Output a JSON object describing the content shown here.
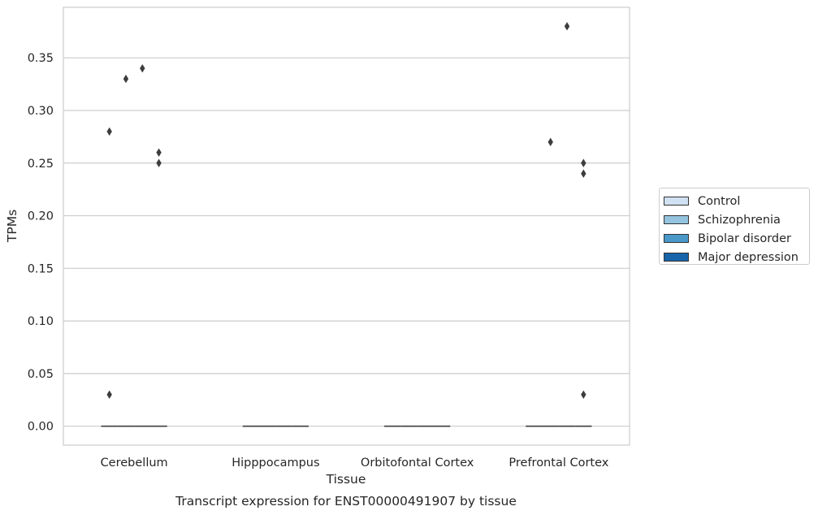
{
  "chart_data": {
    "type": "box",
    "title": "Transcript expression for ENST00000491907 by tissue",
    "xlabel": "Tissue",
    "ylabel": "TPMs",
    "categories": [
      "Cerebellum",
      "Hipppocampus",
      "Orbitofontal Cortex",
      "Prefrontal Cortex"
    ],
    "ylim": [
      -0.018,
      0.398
    ],
    "yticks": [
      0.0,
      0.05,
      0.1,
      0.15,
      0.2,
      0.25,
      0.3,
      0.35
    ],
    "ytick_labels": [
      "0.00",
      "0.05",
      "0.10",
      "0.15",
      "0.20",
      "0.25",
      "0.30",
      "0.35"
    ],
    "grid": "horizontal",
    "legend_position": "right",
    "series": [
      {
        "name": "Control",
        "color": "#d0e1f2",
        "median": [
          0,
          0,
          0,
          0
        ],
        "outliers": [
          [
            0.28,
            0.03
          ],
          [],
          [],
          []
        ]
      },
      {
        "name": "Schizophrenia",
        "color": "#94c4df",
        "median": [
          0,
          0,
          0,
          0
        ],
        "outliers": [
          [
            0.33
          ],
          [],
          [],
          [
            0.27
          ]
        ]
      },
      {
        "name": "Bipolar disorder",
        "color": "#4a98c9",
        "median": [
          0,
          0,
          0,
          0
        ],
        "outliers": [
          [
            0.34
          ],
          [],
          [],
          [
            0.38
          ]
        ]
      },
      {
        "name": "Major depression",
        "color": "#1764ab",
        "median": [
          0,
          0,
          0,
          0
        ],
        "outliers": [
          [
            0.26,
            0.25
          ],
          [],
          [],
          [
            0.25,
            0.24,
            0.03
          ]
        ]
      }
    ]
  }
}
